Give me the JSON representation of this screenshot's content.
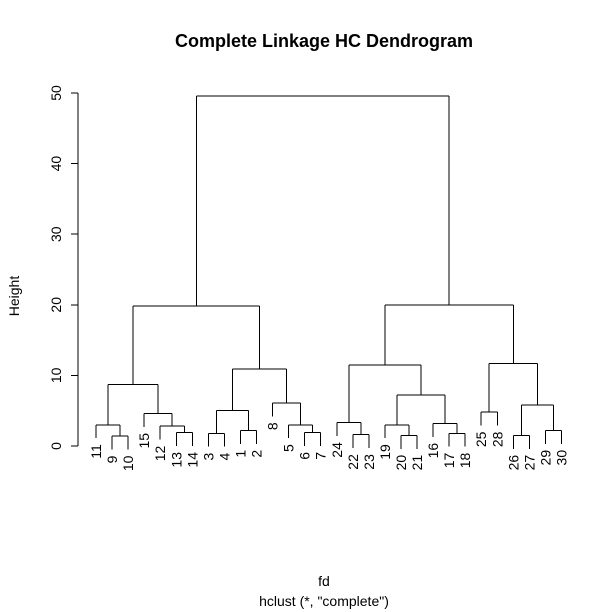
{
  "chart_data": {
    "type": "dendrogram",
    "title": "Complete Linkage HC Dendrogram",
    "xlabel": "fd",
    "sublabel": "hclust (*, \"complete\")",
    "ylabel": "Height",
    "ylim": [
      0,
      50
    ],
    "yticks": [
      "0",
      "10",
      "20",
      "30",
      "40",
      "50"
    ],
    "leaf_order": [
      "11",
      "9",
      "10",
      "15",
      "12",
      "13",
      "14",
      "3",
      "4",
      "1",
      "2",
      "8",
      "5",
      "6",
      "7",
      "24",
      "22",
      "23",
      "19",
      "20",
      "21",
      "16",
      "17",
      "18",
      "25",
      "28",
      "26",
      "27",
      "29",
      "30"
    ],
    "merges": [
      {
        "id": "m1",
        "left": "9",
        "right": "10",
        "height": 1.4
      },
      {
        "id": "m2",
        "left": "11",
        "right": "m1",
        "height": 3.0
      },
      {
        "id": "m3",
        "left": "13",
        "right": "14",
        "height": 1.9
      },
      {
        "id": "m4",
        "left": "12",
        "right": "m3",
        "height": 2.8
      },
      {
        "id": "m5",
        "left": "15",
        "right": "m4",
        "height": 4.6
      },
      {
        "id": "m6",
        "left": "m2",
        "right": "m5",
        "height": 8.7
      },
      {
        "id": "m7",
        "left": "1",
        "right": "2",
        "height": 2.2
      },
      {
        "id": "m8",
        "left": "3",
        "right": "4",
        "height": 1.8
      },
      {
        "id": "m9",
        "left": "m8",
        "right": "m7",
        "height": 5.0
      },
      {
        "id": "m10",
        "left": "6",
        "right": "7",
        "height": 1.9
      },
      {
        "id": "m11",
        "left": "5",
        "right": "m10",
        "height": 3.0
      },
      {
        "id": "m12",
        "left": "8",
        "right": "m11",
        "height": 6.1
      },
      {
        "id": "m13",
        "left": "m9",
        "right": "m12",
        "height": 10.9
      },
      {
        "id": "m14",
        "left": "m6",
        "right": "m13",
        "height": 19.8
      },
      {
        "id": "m15",
        "left": "22",
        "right": "23",
        "height": 1.6
      },
      {
        "id": "m16",
        "left": "24",
        "right": "m15",
        "height": 3.3
      },
      {
        "id": "m17",
        "left": "20",
        "right": "21",
        "height": 1.5
      },
      {
        "id": "m18",
        "left": "19",
        "right": "m17",
        "height": 3.0
      },
      {
        "id": "m19",
        "left": "17",
        "right": "18",
        "height": 1.8
      },
      {
        "id": "m20",
        "left": "16",
        "right": "m19",
        "height": 3.2
      },
      {
        "id": "m21",
        "left": "m18",
        "right": "m20",
        "height": 7.2
      },
      {
        "id": "m22",
        "left": "m16",
        "right": "m21",
        "height": 11.5
      },
      {
        "id": "m23",
        "left": "25",
        "right": "28",
        "height": 4.8
      },
      {
        "id": "m24",
        "left": "26",
        "right": "27",
        "height": 1.5
      },
      {
        "id": "m25",
        "left": "29",
        "right": "30",
        "height": 2.2
      },
      {
        "id": "m26",
        "left": "m24",
        "right": "m25",
        "height": 5.8
      },
      {
        "id": "m27",
        "left": "m23",
        "right": "m26",
        "height": 11.7
      },
      {
        "id": "m28",
        "left": "m22",
        "right": "m27",
        "height": 20.0
      },
      {
        "id": "m29",
        "left": "m14",
        "right": "m28",
        "height": 49.6
      }
    ]
  }
}
